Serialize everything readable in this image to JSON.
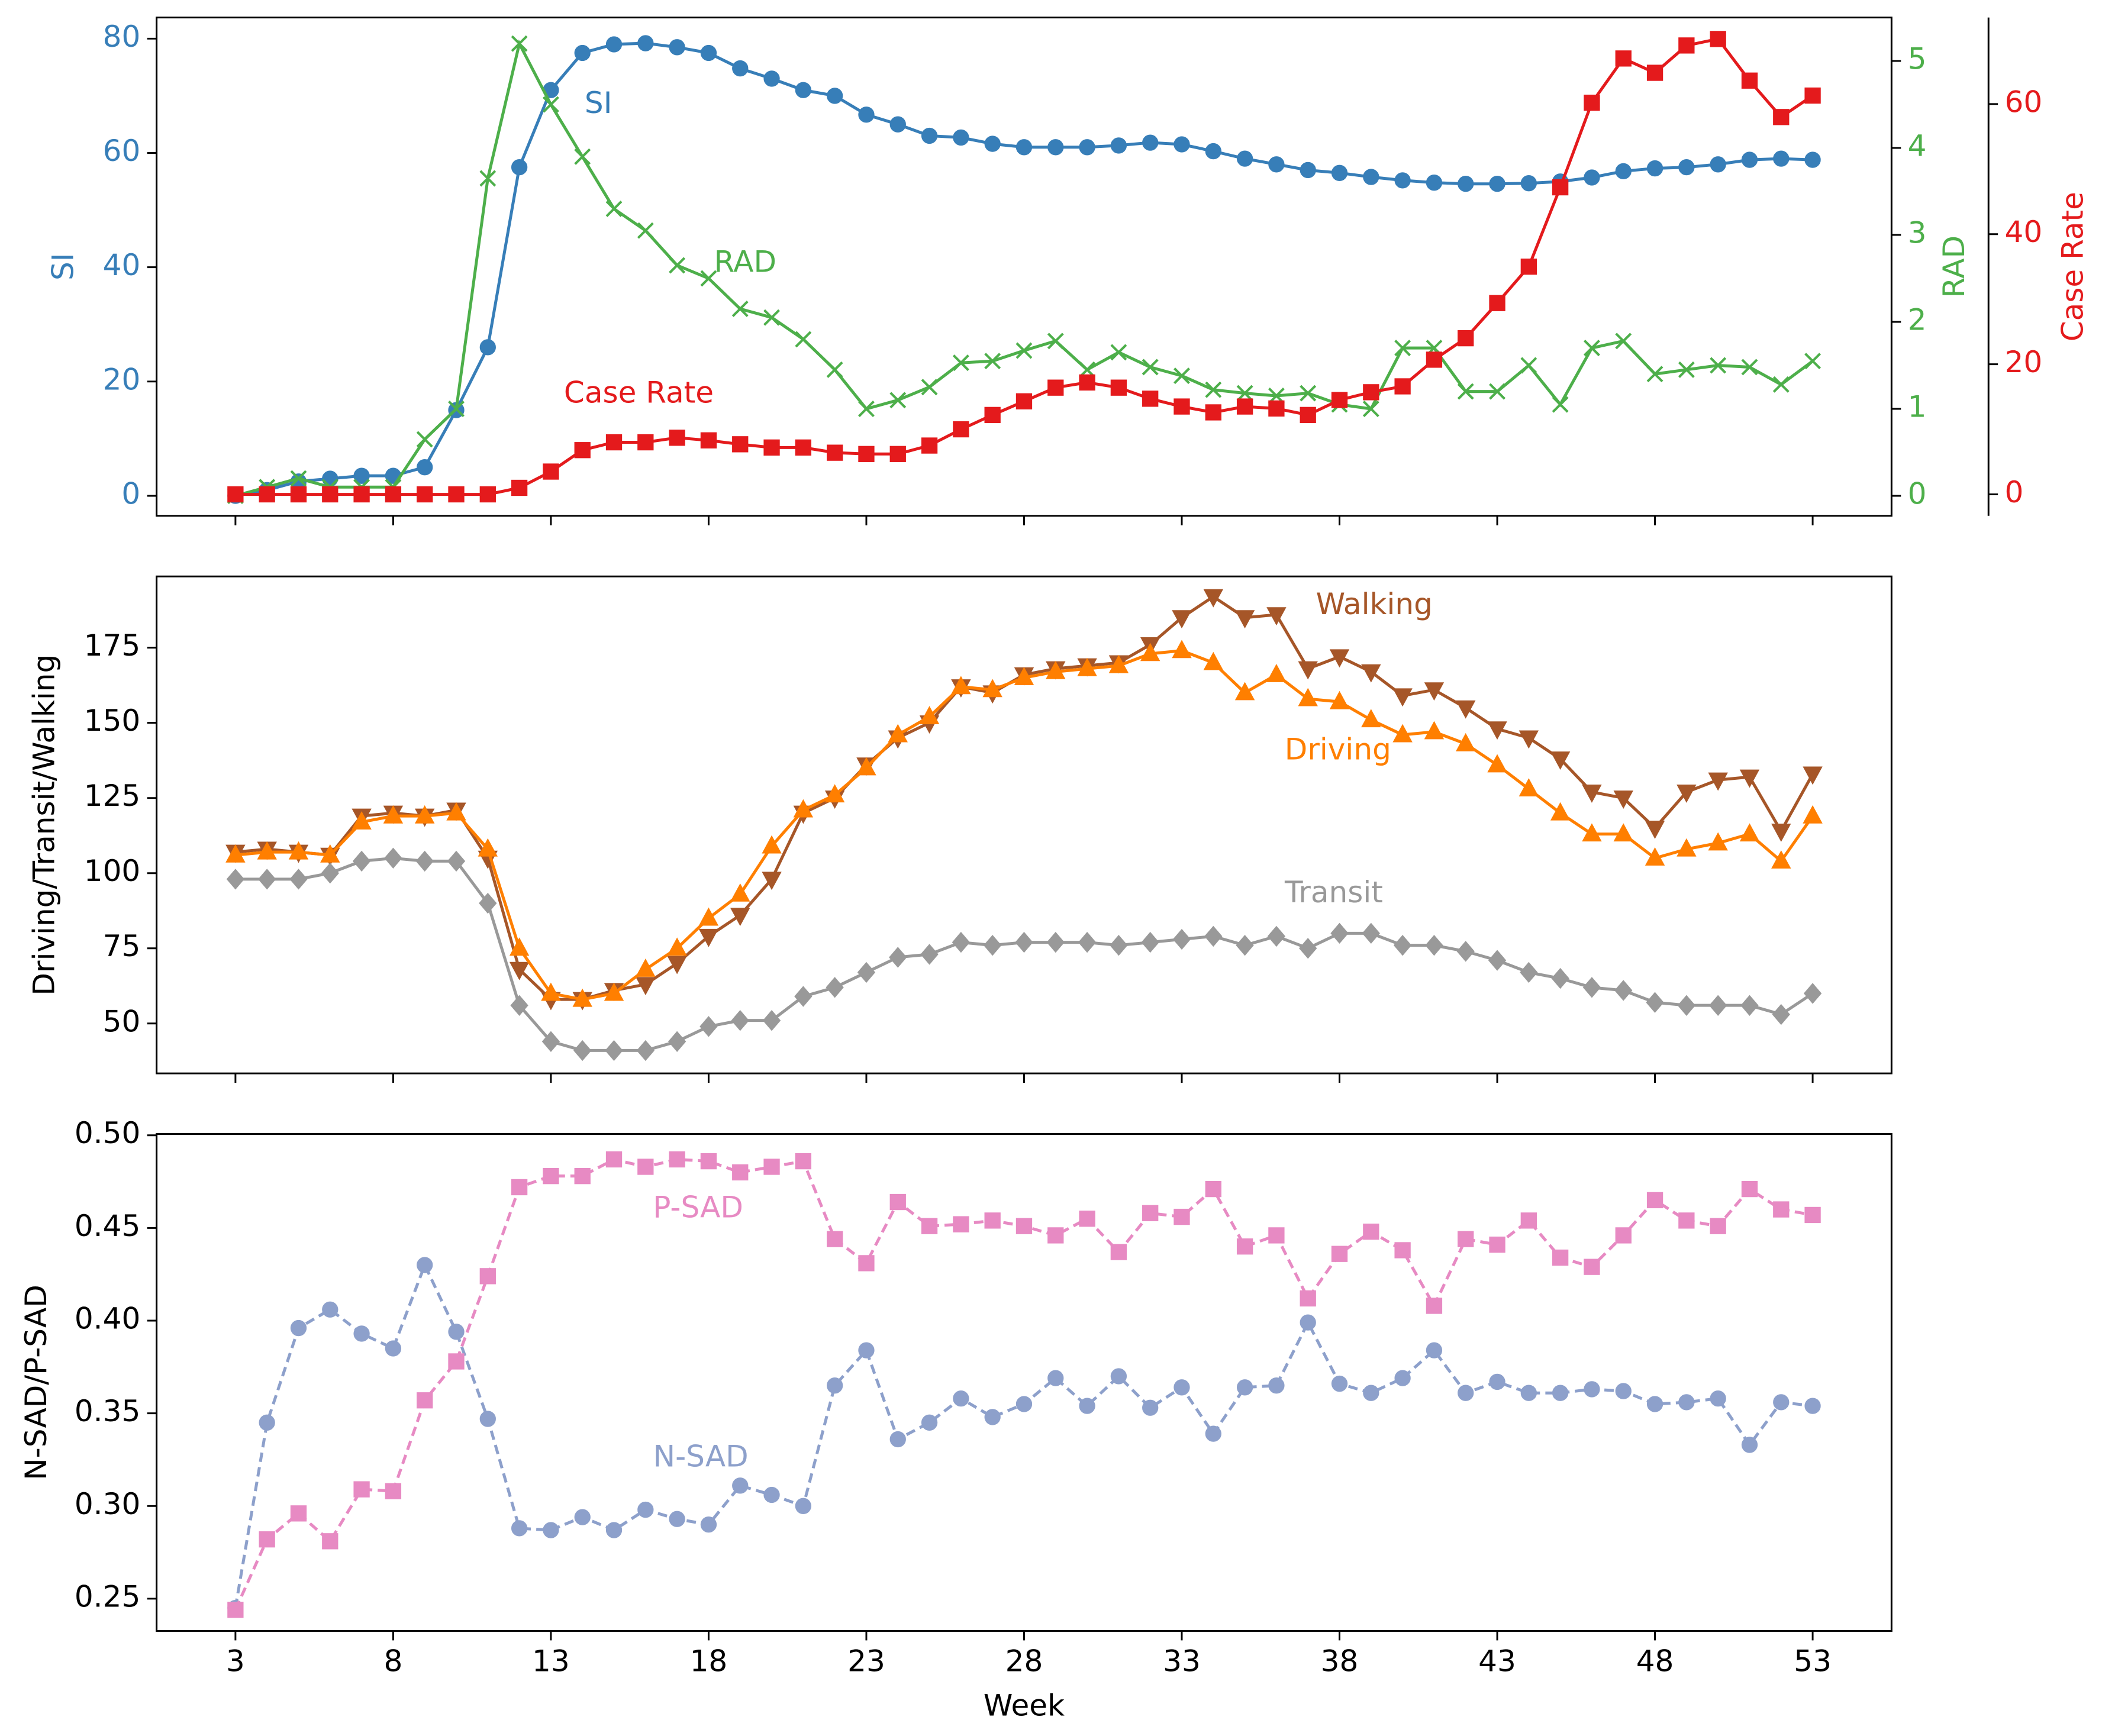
{
  "chart_data": [
    {
      "type": "line",
      "ylabel": "SI",
      "y2label": "RAD",
      "y3label": "Case Rate",
      "color_axes": true,
      "x": [
        3,
        4,
        5,
        6,
        7,
        8,
        9,
        10,
        11,
        12,
        13,
        14,
        15,
        16,
        17,
        18,
        19,
        20,
        21,
        22,
        23,
        24,
        25,
        26,
        27,
        28,
        29,
        30,
        31,
        32,
        33,
        34,
        35,
        36,
        37,
        38,
        39,
        40,
        41,
        42,
        43,
        44,
        45,
        46,
        47,
        48,
        49,
        50,
        51,
        52,
        53
      ],
      "xlim": [
        0.5,
        55.5
      ],
      "xticks": [
        3,
        8,
        13,
        18,
        23,
        28,
        33,
        38,
        43,
        48,
        53
      ],
      "ylim": [
        -3.5,
        83.7
      ],
      "yticks": [
        0,
        20,
        40,
        60,
        80
      ],
      "y2lim": [
        -0.23,
        5.5
      ],
      "y2ticks": [
        0,
        1,
        2,
        3,
        4,
        5
      ],
      "y3lim": [
        -3.3,
        73.3
      ],
      "y3ticks": [
        0,
        20,
        40,
        60
      ],
      "series": [
        {
          "name": "SI",
          "color": "#377eb8",
          "marker": "circle",
          "linestyle": "solid",
          "values": [
            0,
            1,
            2.5,
            3,
            3.5,
            3.5,
            5,
            15,
            26,
            57.5,
            71,
            77.5,
            79,
            79.2,
            78.5,
            77.5,
            74.8,
            73,
            71,
            70,
            66.7,
            65,
            63,
            62.7,
            61.6,
            61,
            61,
            61,
            61.3,
            61.8,
            61.5,
            60.3,
            59,
            58,
            57,
            56.5,
            55.8,
            55.2,
            54.8,
            54.6,
            54.6,
            54.7,
            55,
            55.7,
            56.8,
            57.3,
            57.5,
            58,
            58.8,
            59,
            58.8
          ]
        },
        {
          "name": "RAD",
          "color": "#4daf4a",
          "marker": "x",
          "linestyle": "solid",
          "axis": "y2",
          "values": [
            0,
            0.1,
            0.2,
            0.1,
            0.1,
            0.1,
            0.65,
            1.0,
            3.65,
            5.2,
            4.5,
            3.9,
            3.3,
            3.05,
            2.65,
            2.5,
            2.15,
            2.05,
            1.8,
            1.45,
            1.0,
            1.1,
            1.25,
            1.53,
            1.55,
            1.67,
            1.78,
            1.45,
            1.65,
            1.48,
            1.38,
            1.22,
            1.18,
            1.15,
            1.18,
            1.05,
            1.0,
            1.7,
            1.7,
            1.2,
            1.2,
            1.5,
            1.05,
            1.7,
            1.78,
            1.4,
            1.45,
            1.5,
            1.48,
            1.28,
            1.55
          ]
        },
        {
          "name": "Case Rate",
          "color": "#e41a1c",
          "marker": "square",
          "linestyle": "solid",
          "axis": "y3",
          "values": [
            0,
            0,
            0,
            0,
            0,
            0,
            0,
            0,
            0,
            1,
            3.5,
            6.8,
            8,
            8,
            8.7,
            8.3,
            7.7,
            7.2,
            7.2,
            6.4,
            6.2,
            6.2,
            7.5,
            10,
            12.2,
            14.3,
            16.4,
            17.2,
            16.4,
            14.7,
            13.5,
            12.6,
            13.5,
            13.2,
            12.2,
            14.5,
            15.7,
            16.6,
            20.7,
            24,
            29.4,
            35,
            47.2,
            60.2,
            67,
            64.8,
            69,
            70,
            63.6,
            58,
            61.3
          ]
        }
      ]
    },
    {
      "type": "line",
      "ylabel": "Driving/Transit/Walking",
      "x": [
        3,
        4,
        5,
        6,
        7,
        8,
        9,
        10,
        11,
        12,
        13,
        14,
        15,
        16,
        17,
        18,
        19,
        20,
        21,
        22,
        23,
        24,
        25,
        26,
        27,
        28,
        29,
        30,
        31,
        32,
        33,
        34,
        35,
        36,
        37,
        38,
        39,
        40,
        41,
        42,
        43,
        44,
        45,
        46,
        47,
        48,
        49,
        50,
        51,
        52,
        53
      ],
      "xlim": [
        0.5,
        55.5
      ],
      "xticks": [
        3,
        8,
        13,
        18,
        23,
        28,
        33,
        38,
        43,
        48,
        53
      ],
      "ylim": [
        33.4,
        198.7
      ],
      "yticks": [
        50,
        75,
        100,
        125,
        150,
        175
      ],
      "series": [
        {
          "name": "Walking",
          "color": "#a65628",
          "marker": "triangle-down",
          "linestyle": "solid",
          "values": [
            107,
            108,
            107,
            106,
            119,
            120,
            119,
            121,
            105,
            68,
            58,
            58,
            61,
            63,
            70,
            79,
            86,
            98,
            120,
            125,
            136,
            145,
            150,
            162,
            160,
            166,
            168,
            169,
            170,
            176,
            185,
            192,
            185,
            186,
            168,
            172,
            167,
            159,
            161,
            155,
            148,
            145,
            138,
            127,
            125,
            115,
            127,
            131,
            132,
            114,
            133
          ]
        },
        {
          "name": "Driving",
          "color": "#ff7f00",
          "marker": "triangle-up",
          "linestyle": "solid",
          "values": [
            106,
            107,
            107,
            106,
            117,
            119,
            119,
            120,
            108,
            75,
            60,
            58,
            60,
            68,
            75,
            85,
            93,
            109,
            121,
            126,
            135,
            146,
            152,
            162,
            161,
            165,
            167,
            168,
            169,
            173,
            174,
            170,
            160,
            166,
            158,
            157,
            151,
            146,
            147,
            143,
            136,
            128,
            120,
            113,
            113,
            105,
            108,
            110,
            113,
            104,
            119
          ]
        },
        {
          "name": "Transit",
          "color": "#999999",
          "marker": "diamond",
          "linestyle": "solid",
          "values": [
            98,
            98,
            98,
            100,
            104,
            105,
            104,
            104,
            90,
            56,
            44,
            41,
            41,
            41,
            44,
            49,
            51,
            51,
            59,
            62,
            67,
            72,
            73,
            77,
            76,
            77,
            77,
            77,
            76,
            77,
            78,
            79,
            76,
            79,
            75,
            80,
            80,
            76,
            76,
            74,
            71,
            67,
            65,
            62,
            61,
            57,
            56,
            56,
            56,
            53,
            60
          ]
        }
      ]
    },
    {
      "type": "line",
      "ylabel": "N-SAD/P-SAD",
      "xlabel": "Week",
      "x": [
        3,
        4,
        5,
        6,
        7,
        8,
        9,
        10,
        11,
        12,
        13,
        14,
        15,
        16,
        17,
        18,
        19,
        20,
        21,
        22,
        23,
        24,
        25,
        26,
        27,
        28,
        29,
        30,
        31,
        32,
        33,
        34,
        35,
        36,
        37,
        38,
        39,
        40,
        41,
        42,
        43,
        44,
        45,
        46,
        47,
        48,
        49,
        50,
        51,
        52,
        53
      ],
      "xlim": [
        0.5,
        55.5
      ],
      "xticks": [
        3,
        8,
        13,
        18,
        23,
        28,
        33,
        38,
        43,
        48,
        53
      ],
      "ylim": [
        0.2326,
        0.5007
      ],
      "yticks": [
        0.25,
        {
          "value": 0.3,
          "label": "0.30"
        },
        0.35,
        {
          "value": 0.4,
          "label": "0.40"
        },
        0.45,
        {
          "value": 0.5,
          "label": "0.50"
        }
      ],
      "series": [
        {
          "name": "N-SAD",
          "color": "#8da0cb",
          "marker": "circle",
          "linestyle": "dashed",
          "values": [
            0.245,
            0.345,
            0.396,
            0.406,
            0.393,
            0.385,
            0.43,
            0.394,
            0.347,
            0.288,
            0.287,
            0.294,
            0.287,
            0.298,
            0.293,
            0.29,
            0.311,
            0.306,
            0.3,
            0.365,
            0.384,
            0.336,
            0.345,
            0.358,
            0.348,
            0.355,
            0.369,
            0.354,
            0.37,
            0.353,
            0.364,
            0.339,
            0.364,
            0.365,
            0.399,
            0.366,
            0.361,
            0.369,
            0.384,
            0.361,
            0.367,
            0.361,
            0.361,
            0.363,
            0.362,
            0.355,
            0.356,
            0.358,
            0.333,
            0.356,
            0.354
          ]
        },
        {
          "name": "P-SAD",
          "color": "#e78ac3",
          "marker": "square",
          "linestyle": "dashed",
          "values": [
            0.244,
            0.282,
            0.296,
            0.281,
            0.309,
            0.308,
            0.357,
            0.378,
            0.424,
            0.472,
            0.478,
            0.478,
            0.487,
            0.483,
            0.487,
            0.486,
            0.48,
            0.483,
            0.486,
            0.444,
            0.431,
            0.464,
            0.451,
            0.452,
            0.454,
            0.451,
            0.446,
            0.455,
            0.437,
            0.458,
            0.456,
            0.471,
            0.44,
            0.446,
            0.412,
            0.436,
            0.448,
            0.438,
            0.408,
            0.444,
            0.441,
            0.454,
            0.434,
            0.429,
            0.446,
            0.465,
            0.454,
            0.451,
            0.471,
            0.46,
            0.457
          ]
        }
      ]
    }
  ]
}
